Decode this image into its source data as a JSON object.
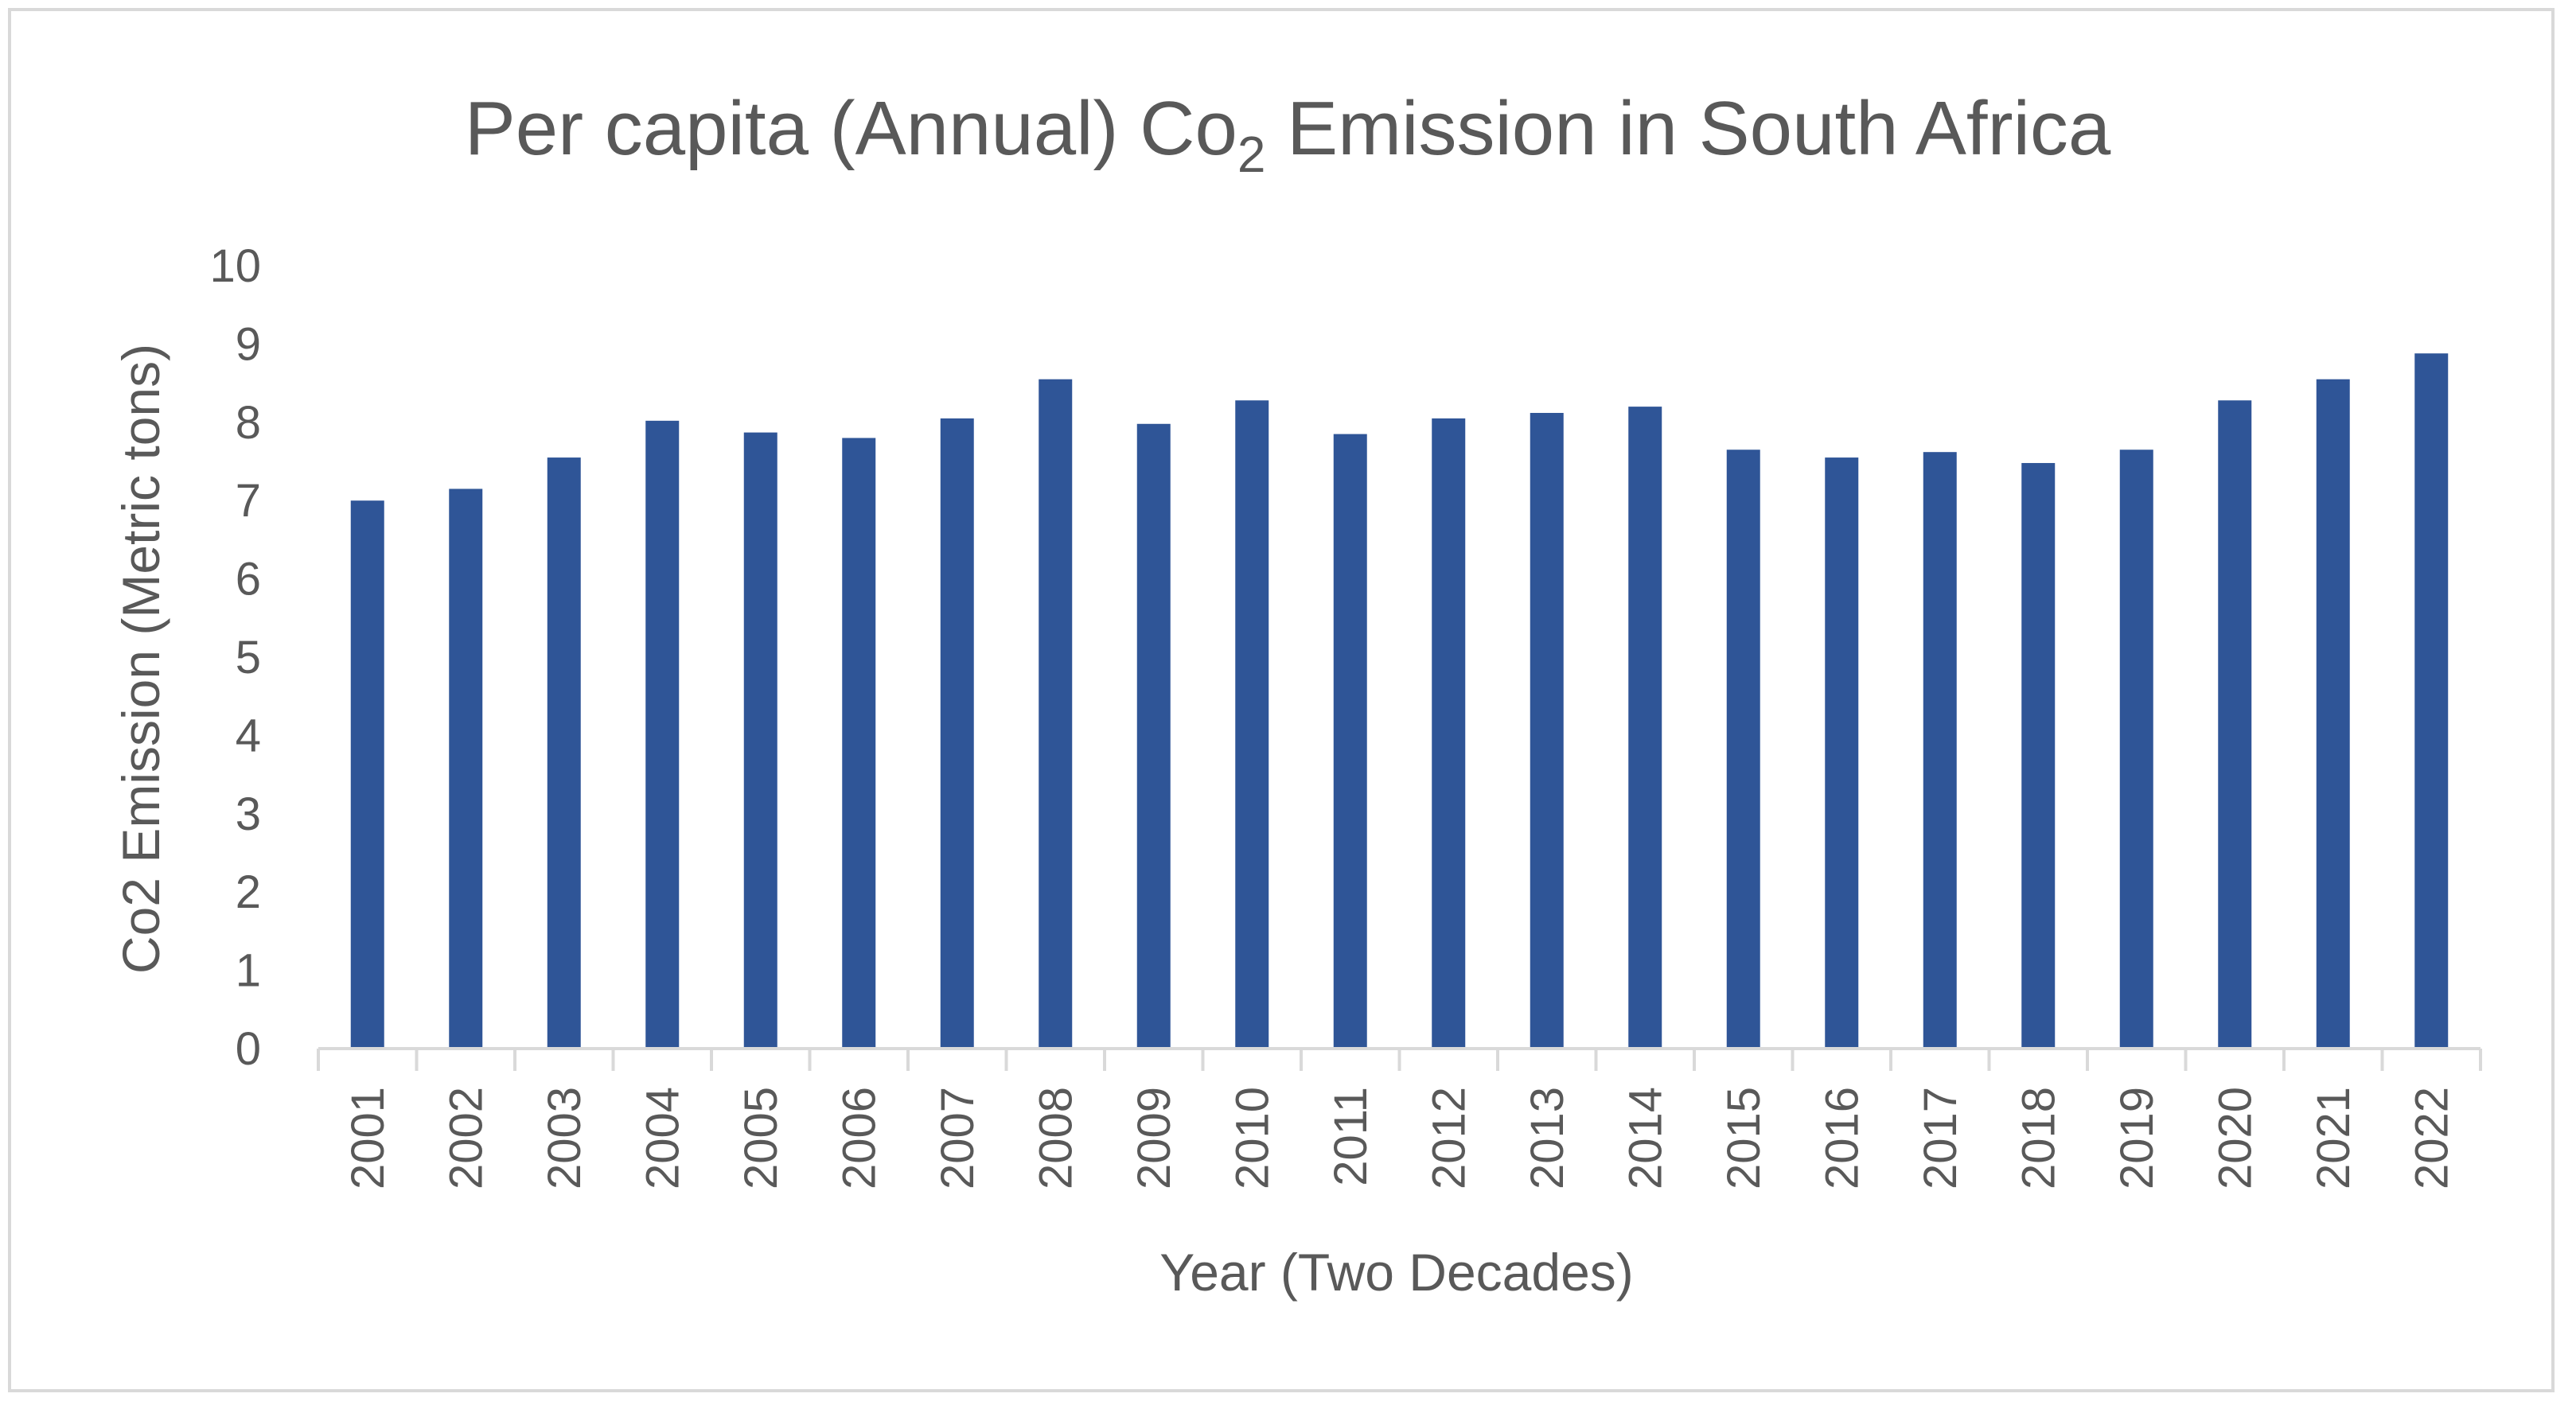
{
  "chart_data": {
    "type": "bar",
    "title_parts": {
      "main": "Per capita (Annual) Co",
      "subscript": "2",
      "tail": " Emission in South Africa"
    },
    "xlabel": "Year (Two Decades)",
    "ylabel": "Co2 Emission (Metric tons)",
    "ylim": [
      0,
      10
    ],
    "yticks": [
      "0",
      "1",
      "2",
      "3",
      "4",
      "5",
      "6",
      "7",
      "8",
      "9",
      "10"
    ],
    "categories": [
      "2001",
      "2002",
      "2003",
      "2004",
      "2005",
      "2006",
      "2007",
      "2008",
      "2009",
      "2010",
      "2011",
      "2012",
      "2013",
      "2014",
      "2015",
      "2016",
      "2017",
      "2018",
      "2019",
      "2020",
      "2021",
      "2022"
    ],
    "values": [
      7.0,
      7.15,
      7.55,
      8.02,
      7.87,
      7.8,
      8.05,
      8.55,
      7.98,
      8.28,
      7.85,
      8.05,
      8.12,
      8.2,
      7.65,
      7.55,
      7.62,
      7.48,
      7.65,
      8.28,
      8.55,
      8.88
    ],
    "grid": false,
    "colors": {
      "bar": "#2f5597",
      "text": "#595959",
      "axis": "#d9d9d9",
      "frame": "#d9d9d9"
    }
  }
}
